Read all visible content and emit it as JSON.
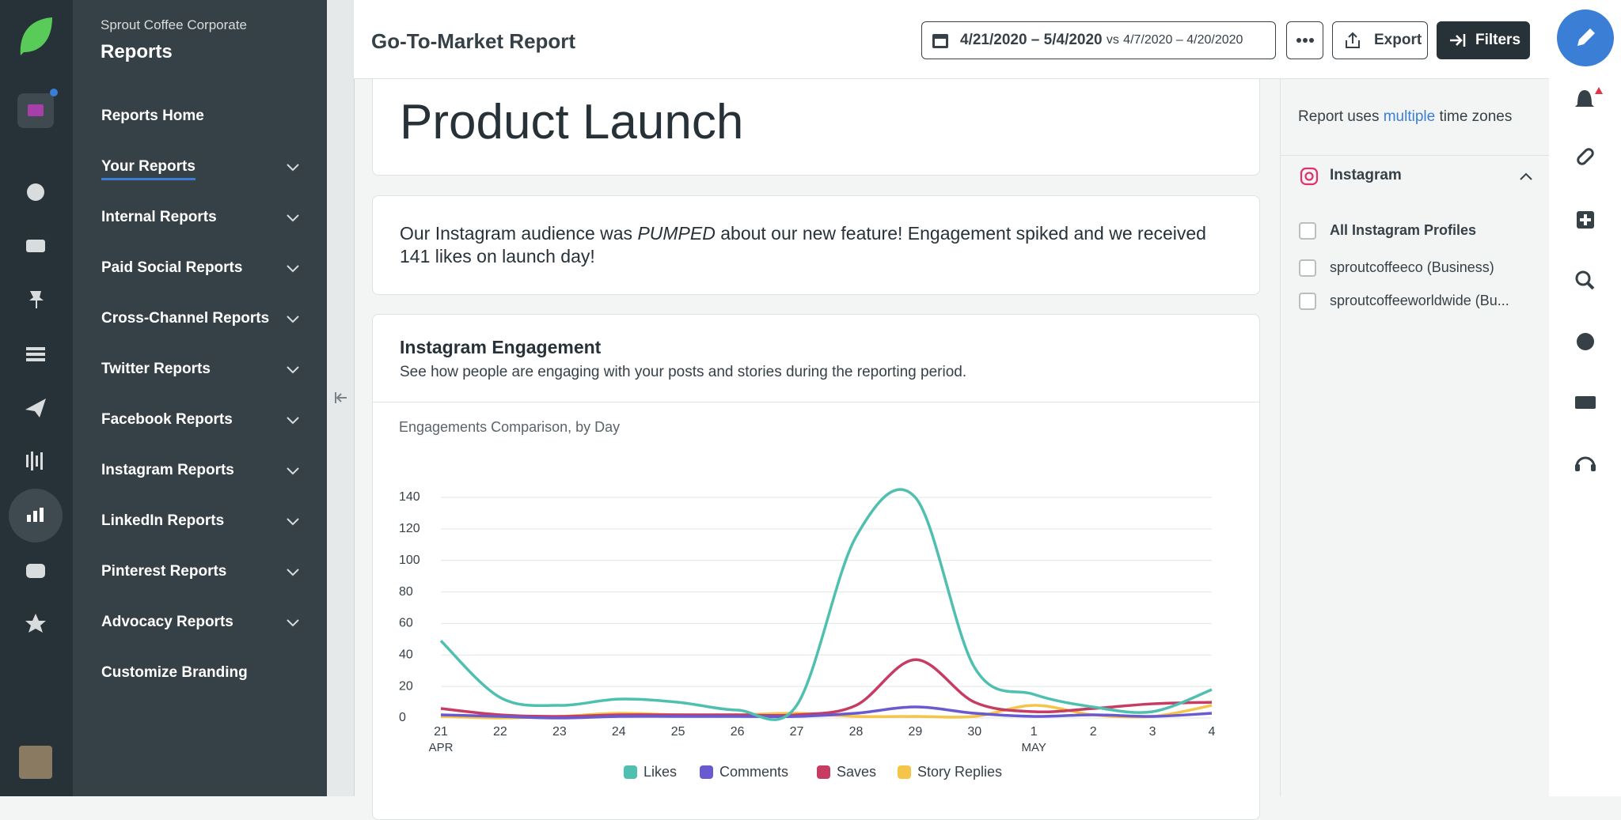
{
  "sidebar": {
    "org": "Sprout Coffee Corporate",
    "title": "Reports",
    "items": [
      "Reports Home",
      "Your Reports",
      "Internal Reports",
      "Paid Social Reports",
      "Cross-Channel Reports",
      "Twitter Reports",
      "Facebook Reports",
      "Instagram Reports",
      "LinkedIn Reports",
      "Pinterest Reports",
      "Advocacy Reports",
      "Customize Branding"
    ]
  },
  "header": {
    "title": "Go-To-Market Report",
    "date_range": "4/21/2020 – 5/4/2020",
    "compare_prefix": "vs",
    "compare_range": "4/7/2020 – 4/20/2020",
    "export": "Export",
    "filters": "Filters"
  },
  "report": {
    "title": "Product Launch",
    "note_parts": [
      "Our Instagram audience was ",
      "PUMPED",
      " about our new feature! Engagement spiked and we received 141 likes on launch day!"
    ]
  },
  "card": {
    "title": "Instagram Engagement",
    "description": "See how people are engaging with your posts and stories during the reporting period."
  },
  "filters": {
    "timezone_parts": [
      "Report uses ",
      "multiple",
      " time zones"
    ],
    "network": "Instagram",
    "profiles": [
      "All Instagram Profiles",
      "sproutcoffeeco (Business)",
      "sproutcoffeeworldwide (Bu..."
    ]
  },
  "chart_data": {
    "type": "line",
    "title": "Engagements Comparison, by Day",
    "categories": [
      "21",
      "22",
      "23",
      "24",
      "25",
      "26",
      "27",
      "28",
      "29",
      "30",
      "1",
      "2",
      "3",
      "4"
    ],
    "x_sublabels": [
      "APR",
      null,
      null,
      null,
      null,
      null,
      null,
      null,
      null,
      null,
      "MAY",
      null,
      null,
      null
    ],
    "series": [
      {
        "name": "Likes",
        "color": "#4fc0b0",
        "values": [
          49,
          13,
          8,
          12,
          10,
          5,
          8,
          115,
          140,
          32,
          15,
          7,
          4,
          18
        ]
      },
      {
        "name": "Comments",
        "color": "#6a5ad0",
        "values": [
          2,
          1,
          0,
          1,
          1,
          1,
          1,
          3,
          7,
          3,
          1,
          2,
          1,
          3
        ]
      },
      {
        "name": "Saves",
        "color": "#c73c63",
        "values": [
          6,
          2,
          1,
          2,
          2,
          2,
          2,
          8,
          37,
          10,
          4,
          6,
          9,
          10
        ]
      },
      {
        "name": "Story Replies",
        "color": "#f5c54a",
        "values": [
          1,
          0,
          1,
          3,
          2,
          2,
          3,
          1,
          1,
          1,
          8,
          2,
          1,
          8
        ]
      }
    ],
    "ylim": [
      0,
      140
    ],
    "yticks": [
      0,
      20,
      40,
      60,
      80,
      100,
      120,
      140
    ],
    "grid": true
  }
}
